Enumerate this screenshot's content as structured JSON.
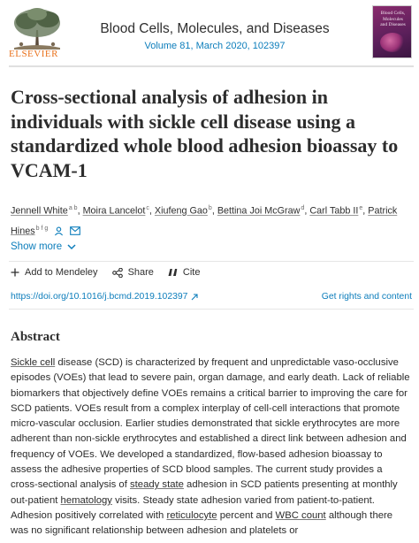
{
  "publisher": {
    "name": "ELSEVIER"
  },
  "journal": {
    "title": "Blood Cells, Molecules, and Diseases",
    "volume": "Volume 81",
    "issue_sep": ", ",
    "date_id": "March 2020, 102397",
    "cover_lines": [
      "Blood Cells,",
      "Molecules",
      "and Diseases"
    ]
  },
  "article": {
    "title": "Cross-sectional analysis of adhesion in individuals with sickle cell disease using a standardized whole blood adhesion bioassay to VCAM-1"
  },
  "authors": [
    {
      "name": "Jennell White",
      "aff": "a b"
    },
    {
      "name": "Moira Lancelot",
      "aff": "c"
    },
    {
      "name": "Xiufeng Gao",
      "aff": "b"
    },
    {
      "name": "Bettina Joi McGraw",
      "aff": "d"
    },
    {
      "name": "Carl Tabb II",
      "aff": "e"
    },
    {
      "name": "Patrick Hines",
      "aff": "b f g"
    }
  ],
  "controls": {
    "show_more": "Show more",
    "add_to_mendeley": "Add to Mendeley",
    "share": "Share",
    "cite": "Cite",
    "doi": "https://doi.org/10.1016/j.bcmd.2019.102397",
    "rights": "Get rights and content"
  },
  "abstract": {
    "heading": "Abstract",
    "parts": [
      {
        "t": "Sickle cell",
        "u": true
      },
      {
        "t": " disease (SCD) is characterized by frequent and unpredictable vaso-occlusive episodes (VOEs) that lead to severe pain, organ damage, and early death. Lack of reliable biomarkers that objectively define VOEs remains a critical barrier to improving the care for SCD patients. VOEs result from a complex interplay of cell-cell interactions that promote micro-vascular occlusion. Earlier studies demonstrated that sickle erythrocytes are more adherent than non-sickle erythrocytes and established a direct link between adhesion and frequency of VOEs. We developed a standardized, flow-based adhesion bioassay to assess the adhesive properties of SCD blood samples. The current study provides a cross-sectional analysis of ",
        "u": false
      },
      {
        "t": "steady state",
        "u": true
      },
      {
        "t": " adhesion in SCD patients presenting at monthly out-patient ",
        "u": false
      },
      {
        "t": "hematology",
        "u": true
      },
      {
        "t": " visits. Steady state adhesion varied from patient-to-patient. Adhesion positively correlated with ",
        "u": false
      },
      {
        "t": "reticulocyte",
        "u": true
      },
      {
        "t": " percent and ",
        "u": false
      },
      {
        "t": "WBC count",
        "u": true
      },
      {
        "t": " although there was no significant relationship between adhesion and platelets or",
        "u": false
      }
    ]
  },
  "colors": {
    "link": "#0c7dbb",
    "elsevier_orange": "#e9711c"
  },
  "icons": [
    "elsevier-tree-logo",
    "person-icon",
    "email-icon",
    "chevron-down-icon",
    "plus-icon",
    "share-icon",
    "quote-icon",
    "external-link-icon"
  ]
}
